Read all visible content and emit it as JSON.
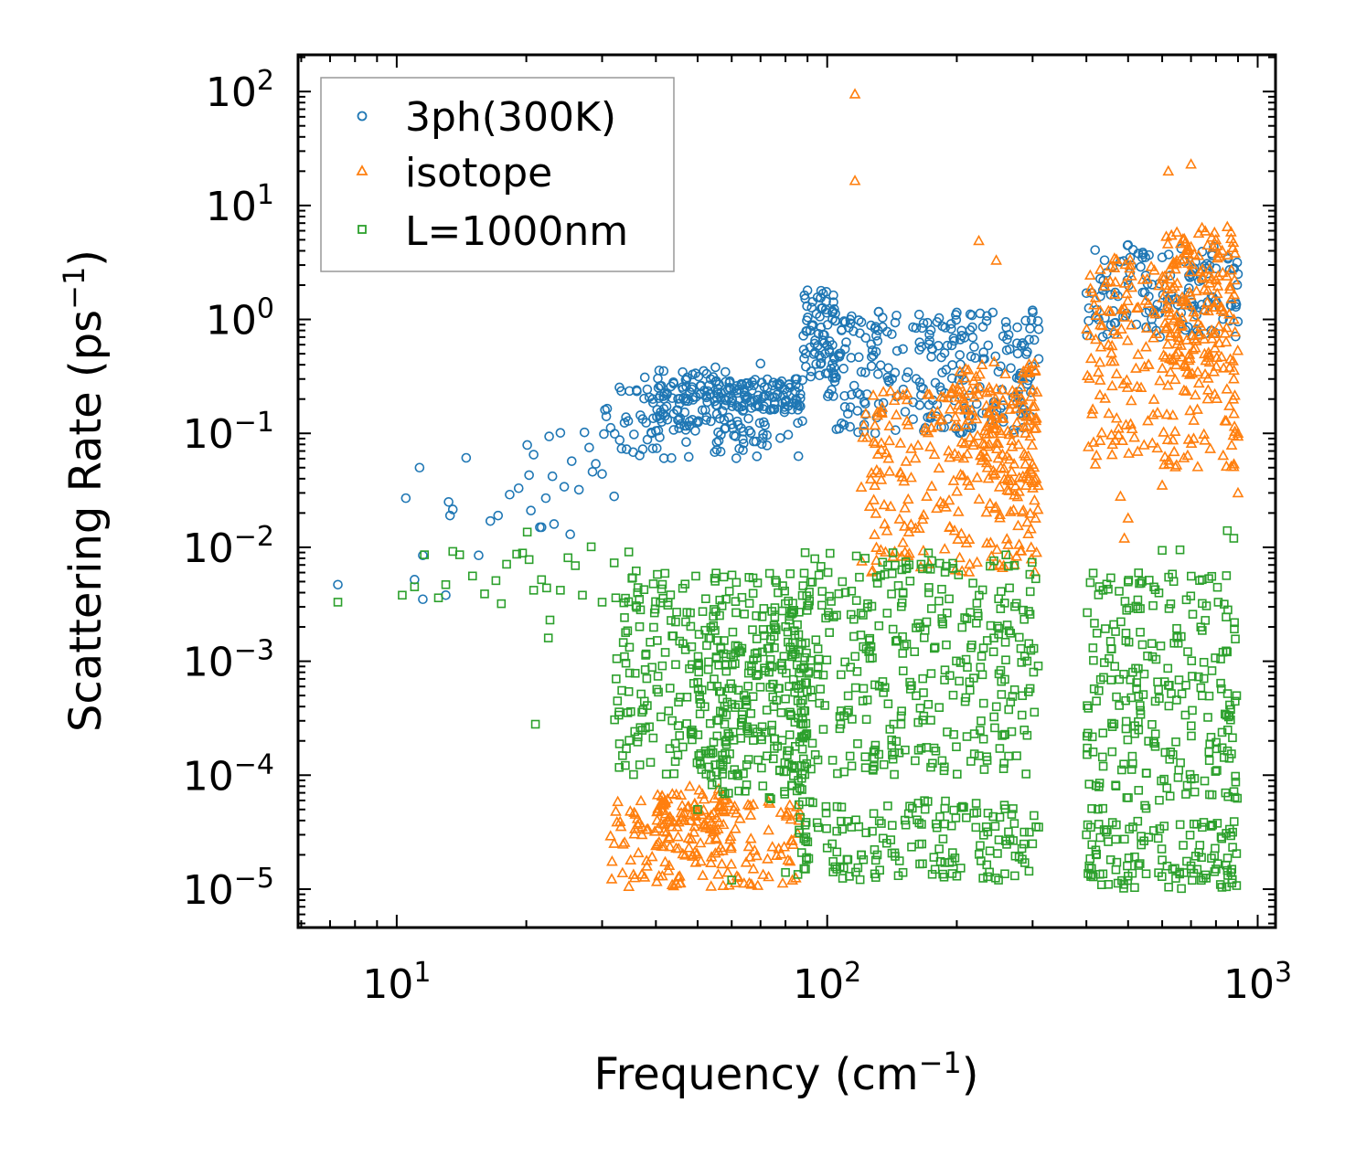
{
  "chart_data": {
    "type": "scatter",
    "title": "",
    "xlabel": "Frequency (cm",
    "xlabel_sup": "−1",
    "xlabel_end": ")",
    "ylabel": "Scattering Rate (ps",
    "ylabel_sup": "−1",
    "ylabel_end": ")",
    "xscale": "log",
    "yscale": "log",
    "xlim": [
      5.9,
      1100
    ],
    "ylim": [
      4.6e-06,
      210
    ],
    "grid": false,
    "legend_position": "upper-left",
    "x_ticks": [
      {
        "base": "10",
        "exp": "1",
        "value": 10
      },
      {
        "base": "10",
        "exp": "2",
        "value": 100
      },
      {
        "base": "10",
        "exp": "3",
        "value": 1000
      }
    ],
    "y_ticks": [
      {
        "base": "10",
        "exp": "2",
        "value": 100
      },
      {
        "base": "10",
        "exp": "1",
        "value": 10
      },
      {
        "base": "10",
        "exp": "0",
        "value": 1
      },
      {
        "base": "10",
        "exp": "−1",
        "value": 0.1
      },
      {
        "base": "10",
        "exp": "−2",
        "value": 0.01
      },
      {
        "base": "10",
        "exp": "−3",
        "value": 0.001
      },
      {
        "base": "10",
        "exp": "−4",
        "value": 0.0001
      },
      {
        "base": "10",
        "exp": "−5",
        "value": 1e-05
      }
    ],
    "series": [
      {
        "name": "3ph(300K)",
        "marker": "circle",
        "color": "#1f77b4",
        "points": [
          [
            7.3,
            0.0047
          ],
          [
            10.5,
            0.027
          ],
          [
            11,
            0.0052
          ],
          [
            11.3,
            0.05
          ],
          [
            11.5,
            0.0085
          ],
          [
            11.5,
            0.0035
          ],
          [
            13,
            0.0038
          ],
          [
            13.2,
            0.025
          ],
          [
            13.3,
            0.019
          ],
          [
            13.5,
            0.0215
          ],
          [
            14.5,
            0.061
          ],
          [
            15.5,
            0.0085
          ],
          [
            16.5,
            0.017
          ],
          [
            17.2,
            0.019
          ],
          [
            18.3,
            0.029
          ],
          [
            19.2,
            0.033
          ],
          [
            20.1,
            0.079
          ],
          [
            20.3,
            0.043
          ],
          [
            20.5,
            0.021
          ],
          [
            20.8,
            0.065
          ],
          [
            21.5,
            0.015
          ],
          [
            21.7,
            0.015
          ],
          [
            22.2,
            0.027
          ],
          [
            22.6,
            0.094
          ],
          [
            23,
            0.042
          ],
          [
            23.2,
            0.016
          ],
          [
            24,
            0.101
          ],
          [
            24.5,
            0.034
          ],
          [
            25.3,
            0.013
          ],
          [
            25.5,
            0.057
          ],
          [
            26.5,
            0.032
          ],
          [
            27.3,
            0.102
          ],
          [
            28,
            0.075
          ],
          [
            28.5,
            0.046
          ],
          [
            29,
            0.054
          ],
          [
            30,
            0.044
          ],
          [
            32,
            0.028
          ],
          [
            37.7,
            0.31
          ],
          [
            40,
            0.105
          ],
          [
            46.9,
            0.295
          ],
          [
            55,
            0.38
          ],
          [
            60,
            0.12
          ],
          [
            70,
            0.41
          ],
          [
            85,
            0.3
          ],
          [
            90,
            1.8
          ],
          [
            110,
            0.55
          ],
          [
            130,
            0.72
          ],
          [
            150,
            0.55
          ],
          [
            180,
            0.95
          ],
          [
            200,
            1.15
          ],
          [
            230,
            0.45
          ],
          [
            260,
            0.95
          ],
          [
            300,
            1.2
          ],
          [
            310,
            0.82
          ],
          [
            310,
            0.45
          ],
          [
            400,
            1.7
          ],
          [
            420,
            1.05
          ],
          [
            500,
            4.5
          ],
          [
            550,
            1.15
          ],
          [
            600,
            3.5
          ],
          [
            700,
            2.5
          ],
          [
            800,
            2.8
          ],
          [
            900,
            2.5
          ]
        ],
        "bands": [
          {
            "x_range": [
              30,
              88
            ],
            "y_range": [
              0.06,
              0.28
            ]
          },
          {
            "x_range": [
              40,
              60
            ],
            "y_range": [
              0.12,
              0.36
            ]
          },
          {
            "x_range": [
              60,
              88
            ],
            "y_range": [
              0.16,
              0.3
            ]
          },
          {
            "x_range": [
              88,
              105
            ],
            "y_range": [
              0.3,
              1.9
            ]
          },
          {
            "x_range": [
              105,
              310
            ],
            "y_range": [
              0.45,
              1.2
            ]
          },
          {
            "x_range": [
              100,
              310
            ],
            "y_range": [
              0.1,
              0.42
            ]
          },
          {
            "x_range": [
              400,
              900
            ],
            "y_range": [
              0.7,
              4.5
            ]
          }
        ]
      },
      {
        "name": "isotope",
        "marker": "triangle",
        "color": "#ff7f0e",
        "points": [
          [
            116,
            95
          ],
          [
            116,
            16.5
          ],
          [
            225,
            4.9
          ],
          [
            247,
            3.3
          ],
          [
            420,
            1.55
          ],
          [
            430,
            0.42
          ],
          [
            450,
            0.6
          ],
          [
            460,
            0.08
          ],
          [
            480,
            0.028
          ],
          [
            490,
            0.012
          ],
          [
            500,
            0.018
          ],
          [
            600,
            0.035
          ],
          [
            620,
            20
          ],
          [
            700,
            23
          ],
          [
            710,
            0.09
          ],
          [
            800,
            5
          ],
          [
            850,
            6.5
          ],
          [
            900,
            0.1
          ],
          [
            900,
            0.03
          ],
          [
            880,
            0.3
          ],
          [
            136,
            0.016
          ],
          [
            150,
            0.011
          ]
        ],
        "bands": [
          {
            "x_range": [
              31,
              88
            ],
            "y_range": [
              1.05e-05,
              6e-05
            ]
          },
          {
            "x_range": [
              40,
              60
            ],
            "y_range": [
              2e-05,
              8e-05
            ]
          },
          {
            "x_range": [
              120,
              310
            ],
            "y_range": [
              0.006,
              0.25
            ]
          },
          {
            "x_range": [
              200,
              310
            ],
            "y_range": [
              0.03,
              0.45
            ]
          },
          {
            "x_range": [
              400,
              900
            ],
            "y_range": [
              0.05,
              3.5
            ]
          },
          {
            "x_range": [
              600,
              900
            ],
            "y_range": [
              0.3,
              6.5
            ]
          }
        ]
      },
      {
        "name": "L=1000nm",
        "marker": "square",
        "color": "#2ca02c",
        "points": [
          [
            7.3,
            0.0033
          ],
          [
            10.3,
            0.0038
          ],
          [
            11,
            0.0045
          ],
          [
            11.6,
            0.0086
          ],
          [
            12.5,
            0.0036
          ],
          [
            13,
            0.0047
          ],
          [
            13.5,
            0.0092
          ],
          [
            14,
            0.0086
          ],
          [
            15,
            0.0056
          ],
          [
            16,
            0.0039
          ],
          [
            17,
            0.0051
          ],
          [
            17.5,
            0.0032
          ],
          [
            18,
            0.0071
          ],
          [
            19,
            0.0087
          ],
          [
            19.6,
            0.0089
          ],
          [
            20.1,
            0.0136
          ],
          [
            20.3,
            0.0078
          ],
          [
            20.8,
            0.0042
          ],
          [
            21,
            0.00028
          ],
          [
            21.7,
            0.0052
          ],
          [
            22.3,
            0.0044
          ],
          [
            22.5,
            0.0016
          ],
          [
            22.7,
            0.0023
          ],
          [
            24,
            0.0042
          ],
          [
            25,
            0.0081
          ],
          [
            26,
            0.0069
          ],
          [
            27,
            0.0038
          ],
          [
            28.3,
            0.0101
          ],
          [
            30,
            0.0033
          ],
          [
            32,
            0.0073
          ],
          [
            34.6,
            0.0091
          ],
          [
            36,
            0.0062
          ],
          [
            45,
            0.00015
          ],
          [
            50,
            5e-05
          ],
          [
            60,
            1.2e-05
          ],
          [
            80,
            1.4e-05
          ],
          [
            100,
            2.3e-05
          ],
          [
            120,
            2e-05
          ],
          [
            150,
            1.4e-05
          ],
          [
            200,
            1.3e-05
          ],
          [
            250,
            1.2e-05
          ],
          [
            300,
            2.5e-05
          ],
          [
            310,
            3.5e-05
          ],
          [
            400,
            3e-05
          ],
          [
            450,
            1.1e-05
          ],
          [
            500,
            1.3e-05
          ],
          [
            600,
            1.8e-05
          ],
          [
            700,
            1.6e-05
          ],
          [
            800,
            1.5e-05
          ],
          [
            600,
            0.0094
          ],
          [
            660,
            0.0095
          ],
          [
            850,
            0.014
          ],
          [
            880,
            0.012
          ]
        ],
        "bands": [
          {
            "x_range": [
              32,
              90
            ],
            "y_range": [
              0.0001,
              0.006
            ]
          },
          {
            "x_range": [
              50,
              90
            ],
            "y_range": [
              6e-05,
              0.004
            ]
          },
          {
            "x_range": [
              85,
              310
            ],
            "y_range": [
              0.0001,
              0.009
            ]
          },
          {
            "x_range": [
              85,
              310
            ],
            "y_range": [
              1.2e-05,
              6e-05
            ]
          },
          {
            "x_range": [
              400,
              900
            ],
            "y_range": [
              5e-05,
              0.006
            ]
          },
          {
            "x_range": [
              400,
              900
            ],
            "y_range": [
              1e-05,
              4e-05
            ]
          }
        ]
      }
    ]
  }
}
